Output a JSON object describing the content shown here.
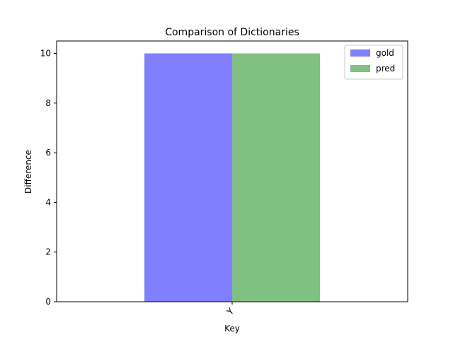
{
  "chart_data": {
    "type": "bar",
    "title": "Comparison of Dictionaries",
    "xlabel": "Key",
    "ylabel": "Difference",
    "categories": [
      "Y"
    ],
    "series": [
      {
        "name": "gold",
        "values": [
          10
        ],
        "color": "#8080ff"
      },
      {
        "name": "pred",
        "values": [
          10
        ],
        "color": "#80c080"
      }
    ],
    "ylim": [
      0,
      10.5
    ],
    "yticks": [
      0,
      2,
      4,
      6,
      8,
      10
    ],
    "grid": false,
    "legend_position": "top-right",
    "xtick_rotation": "rotated"
  }
}
